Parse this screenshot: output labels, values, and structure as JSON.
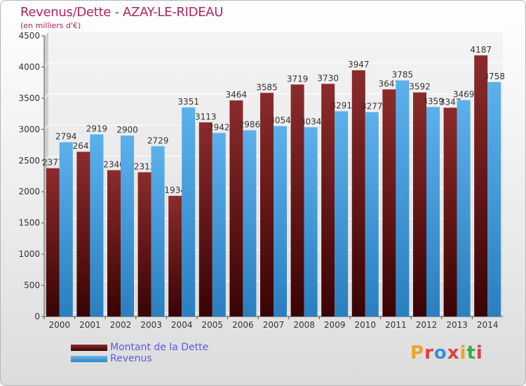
{
  "title": "Revenus/Dette - AZAY-LE-RIDEAU",
  "subtitle": "(en milliers d'€)",
  "logo": {
    "text": "Proxiti",
    "letters": [
      {
        "ch": "P",
        "color": "#f0a028"
      },
      {
        "ch": "r",
        "color": "#e04040"
      },
      {
        "ch": "o",
        "color": "#3a8fd8"
      },
      {
        "ch": "x",
        "color": "#e04040"
      },
      {
        "ch": "i",
        "color": "#f0a028"
      },
      {
        "ch": "t",
        "color": "#3aaa50"
      },
      {
        "ch": "i",
        "color": "#e04040"
      }
    ]
  },
  "chart_data": {
    "type": "bar",
    "title": "Revenus/Dette - AZAY-LE-RIDEAU",
    "subtitle": "(en milliers d'€)",
    "categories": [
      "2000",
      "2001",
      "2002",
      "2003",
      "2004",
      "2005",
      "2006",
      "2007",
      "2008",
      "2009",
      "2010",
      "2011",
      "2012",
      "2013",
      "2014"
    ],
    "series": [
      {
        "name": "Montant de la Dette",
        "color": "#7a1f1f",
        "values": [
          2377,
          2641,
          2346,
          2313,
          1934,
          3113,
          3464,
          3585,
          3719,
          3730,
          3947,
          3641,
          3592,
          3347,
          4187
        ],
        "labels": [
          "2377",
          "2641",
          "2346",
          "2313",
          "1934",
          "3113",
          "3464",
          "3585",
          "3719",
          "3730",
          "3947",
          "3641",
          "3592",
          "3347",
          "4187"
        ]
      },
      {
        "name": "Revenus",
        "color": "#3a9be0",
        "values": [
          2794,
          2919,
          2900,
          2729,
          3351,
          2942,
          2986,
          3054,
          3034,
          3291,
          3277,
          3785,
          3359,
          3469,
          3758
        ],
        "labels": [
          "2794",
          "2919",
          "2900",
          "2729",
          "3351",
          "2942",
          "2986",
          "3054",
          "3034",
          "3291",
          "3277",
          "3785",
          "3359",
          "3469",
          "3758"
        ]
      }
    ],
    "yticks": [
      "0",
      "500",
      "1000",
      "1500",
      "2000",
      "2500",
      "3000",
      "3500",
      "4000",
      "4500"
    ],
    "ylim": [
      0,
      4500
    ],
    "grid": true,
    "legend": "bottom-left"
  }
}
